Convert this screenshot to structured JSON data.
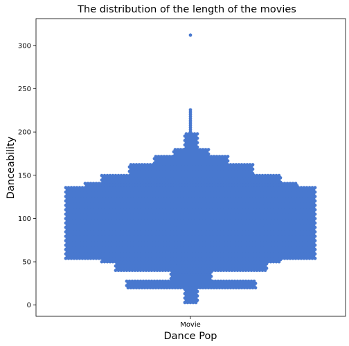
{
  "chart_data": {
    "type": "scatter",
    "subtype": "swarm",
    "title": "The distribution of the length of the movies",
    "xlabel": "Dance Pop",
    "ylabel": "Danceability",
    "categories": [
      "Movie"
    ],
    "ylim": [
      -13,
      331
    ],
    "yticks": [
      0,
      50,
      100,
      150,
      200,
      250,
      300
    ],
    "grid": false,
    "legend": "none",
    "marker_color": "#4878CF",
    "distribution": {
      "body_min": 54,
      "body_max": 138,
      "density_bands": [
        {
          "from": 3,
          "to": 20,
          "half_width_fraction": 0.06
        },
        {
          "from": 20,
          "to": 28,
          "half_width_fraction": 0.52
        },
        {
          "from": 28,
          "to": 40,
          "half_width_fraction": 0.16
        },
        {
          "from": 40,
          "to": 50,
          "half_width_fraction": 0.6
        },
        {
          "from": 50,
          "to": 54,
          "half_width_fraction": 0.72
        },
        {
          "from": 54,
          "to": 138,
          "half_width_fraction": 1.0
        },
        {
          "from": 138,
          "to": 142,
          "half_width_fraction": 0.85
        },
        {
          "from": 142,
          "to": 152,
          "half_width_fraction": 0.72
        },
        {
          "from": 152,
          "to": 164,
          "half_width_fraction": 0.5
        },
        {
          "from": 164,
          "to": 172,
          "half_width_fraction": 0.3
        },
        {
          "from": 172,
          "to": 180,
          "half_width_fraction": 0.14
        },
        {
          "from": 180,
          "to": 200,
          "half_width_fraction": 0.06
        },
        {
          "from": 200,
          "to": 228,
          "half_width_fraction": 0.01
        }
      ],
      "outliers": [
        312
      ]
    }
  }
}
